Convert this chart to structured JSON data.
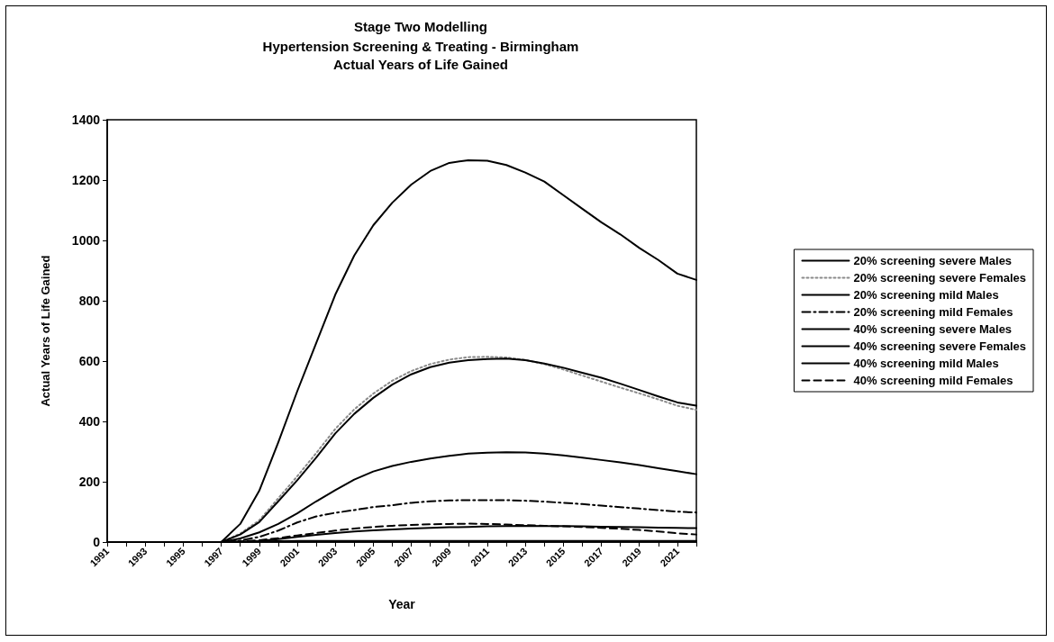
{
  "chart_data": {
    "type": "line",
    "title": "Stage Two Modelling",
    "subtitle": "Hypertension Screening & Treating - Birmingham\nActual Years of Life Gained",
    "xlabel": "Year",
    "ylabel": "Actual Years of Life Gained",
    "categories": [
      "1991",
      null,
      "1993",
      null,
      "1995",
      null,
      "1997",
      null,
      "1999",
      null,
      "2001",
      null,
      "2003",
      null,
      "2005",
      null,
      "2007",
      null,
      "2009",
      null,
      "2011",
      null,
      "2013",
      null,
      "2015",
      null,
      "2017",
      null,
      "2019",
      null,
      "2021",
      null
    ],
    "ylim": [
      0,
      1400
    ],
    "yticks": [
      0,
      200,
      400,
      600,
      800,
      1000,
      1200,
      1400
    ],
    "grid": false,
    "legend": "right",
    "marker": "none",
    "series": [
      {
        "name": "20% screening severe Males",
        "color": "#000000",
        "line_style": "solid",
        "values": [
          0,
          0,
          0,
          0,
          0,
          0,
          0,
          1,
          2,
          3,
          4,
          4,
          4,
          4,
          4,
          4,
          4,
          4,
          4,
          4,
          4,
          4,
          4,
          4,
          4,
          4,
          4,
          4,
          4,
          4,
          4,
          4
        ]
      },
      {
        "name": "20% screening severe Females",
        "color": "#8a8a8a",
        "line_style": "dotted",
        "values": [
          0,
          0,
          0,
          0,
          0,
          0,
          0,
          28,
          72,
          145,
          218,
          295,
          375,
          440,
          492,
          535,
          567,
          590,
          605,
          613,
          614,
          612,
          604,
          590,
          572,
          552,
          532,
          512,
          493,
          473,
          452,
          438
        ]
      },
      {
        "name": "20% screening mild Males",
        "color": "#000000",
        "line_style": "solid",
        "values": [
          0,
          0,
          0,
          0,
          0,
          0,
          0,
          25,
          66,
          135,
          205,
          280,
          360,
          425,
          478,
          522,
          556,
          580,
          595,
          603,
          607,
          608,
          603,
          592,
          578,
          561,
          545,
          525,
          504,
          483,
          463,
          452
        ]
      },
      {
        "name": "20% screening mild Females",
        "color": "#000000",
        "line_style": "dashdot",
        "values": [
          0,
          0,
          0,
          0,
          0,
          0,
          0,
          5,
          17,
          38,
          65,
          85,
          97,
          106,
          116,
          122,
          130,
          135,
          138,
          139,
          139,
          139,
          137,
          134,
          130,
          126,
          121,
          116,
          111,
          106,
          101,
          98
        ]
      },
      {
        "name": "40% screening severe Males",
        "color": "#000000",
        "line_style": "solid",
        "values": [
          0,
          0,
          0,
          0,
          0,
          0,
          0,
          12,
          32,
          60,
          95,
          135,
          172,
          207,
          234,
          252,
          266,
          277,
          286,
          293,
          296,
          298,
          297,
          293,
          287,
          280,
          272,
          264,
          255,
          245,
          235,
          225
        ]
      },
      {
        "name": "40% screening severe Females",
        "color": "#000000",
        "line_style": "solid",
        "values": [
          0,
          0,
          0,
          0,
          0,
          0,
          0,
          1,
          4,
          10,
          17,
          24,
          30,
          35,
          39,
          42,
          45,
          47,
          49,
          50,
          52,
          53,
          54,
          53,
          53,
          52,
          51,
          50,
          49,
          48,
          47,
          46
        ]
      },
      {
        "name": "40% screening mild Males",
        "color": "#000000",
        "line_style": "solid",
        "values": [
          0,
          0,
          0,
          0,
          0,
          0,
          0,
          60,
          170,
          330,
          500,
          660,
          820,
          950,
          1050,
          1125,
          1185,
          1230,
          1257,
          1266,
          1264,
          1250,
          1225,
          1195,
          1150,
          1105,
          1060,
          1020,
          975,
          935,
          890,
          869
        ]
      },
      {
        "name": "40% screening mild Females",
        "color": "#000000",
        "line_style": "dashed",
        "values": [
          0,
          0,
          0,
          0,
          0,
          0,
          0,
          2,
          6,
          13,
          22,
          30,
          38,
          45,
          50,
          54,
          57,
          59,
          60,
          61,
          60,
          58,
          56,
          54,
          52,
          50,
          47,
          44,
          40,
          35,
          29,
          25
        ]
      }
    ]
  }
}
